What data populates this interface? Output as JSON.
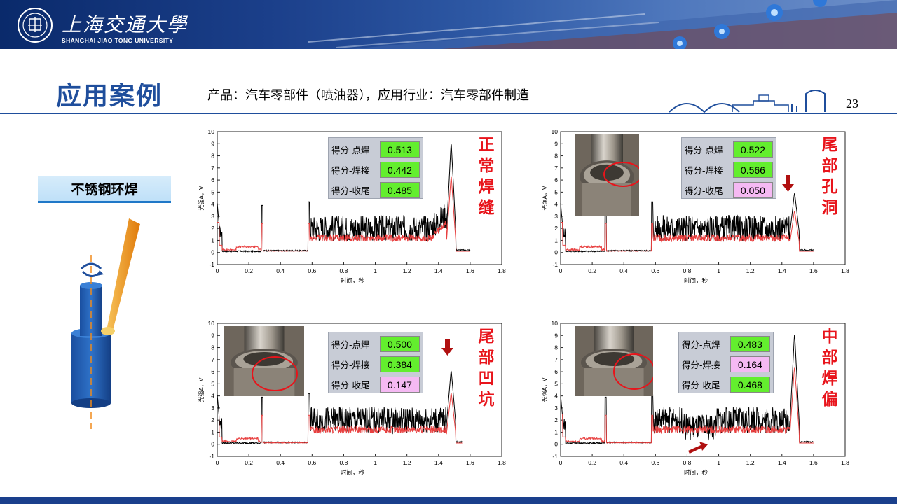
{
  "header": {
    "university_cn": "上海交通大學",
    "university_en": "SHANGHAI JIAO TONG UNIVERSITY"
  },
  "title": "应用案例",
  "subtitle": "产品：汽车零部件（喷油器），应用行业：汽车零部件制造",
  "page_number": "23",
  "weld_type_label": "不锈钢环焊",
  "axis": {
    "ylabel": "光强A，V",
    "xlabel": "时间，秒",
    "yticks": [
      "10",
      "9",
      "8",
      "7",
      "6",
      "5",
      "4",
      "3",
      "2",
      "1",
      "0",
      "-1"
    ],
    "xticks": [
      "0",
      "0.2",
      "0.4",
      "0.6",
      "0.8",
      "1",
      "1.2",
      "1.4",
      "1.6",
      "1.8"
    ]
  },
  "score_labels": [
    "得分-点焊",
    "得分-焊接",
    "得分-收尾"
  ],
  "panels": [
    {
      "tag": [
        "正",
        "常",
        "焊",
        "缝"
      ],
      "scores": [
        "0.513",
        "0.442",
        "0.485"
      ],
      "status": [
        "good",
        "good",
        "good"
      ],
      "has_photo": false
    },
    {
      "tag": [
        "尾",
        "部",
        "孔",
        "洞"
      ],
      "scores": [
        "0.522",
        "0.566",
        "0.050"
      ],
      "status": [
        "good",
        "good",
        "bad"
      ],
      "has_photo": true
    },
    {
      "tag": [
        "尾",
        "部",
        "凹",
        "坑"
      ],
      "scores": [
        "0.500",
        "0.384",
        "0.147"
      ],
      "status": [
        "good",
        "good",
        "bad"
      ],
      "has_photo": true
    },
    {
      "tag": [
        "中",
        "部",
        "焊",
        "偏"
      ],
      "scores": [
        "0.483",
        "0.164",
        "0.468"
      ],
      "status": [
        "good",
        "bad",
        "good"
      ],
      "has_photo": true
    }
  ],
  "colors": {
    "brand_blue": "#1f4e9c",
    "tag_red": "#e8141b",
    "score_good": "#63ee2e",
    "score_bad": "#f5b9f3",
    "trace_black": "#000000",
    "trace_red": "#e84040"
  }
}
